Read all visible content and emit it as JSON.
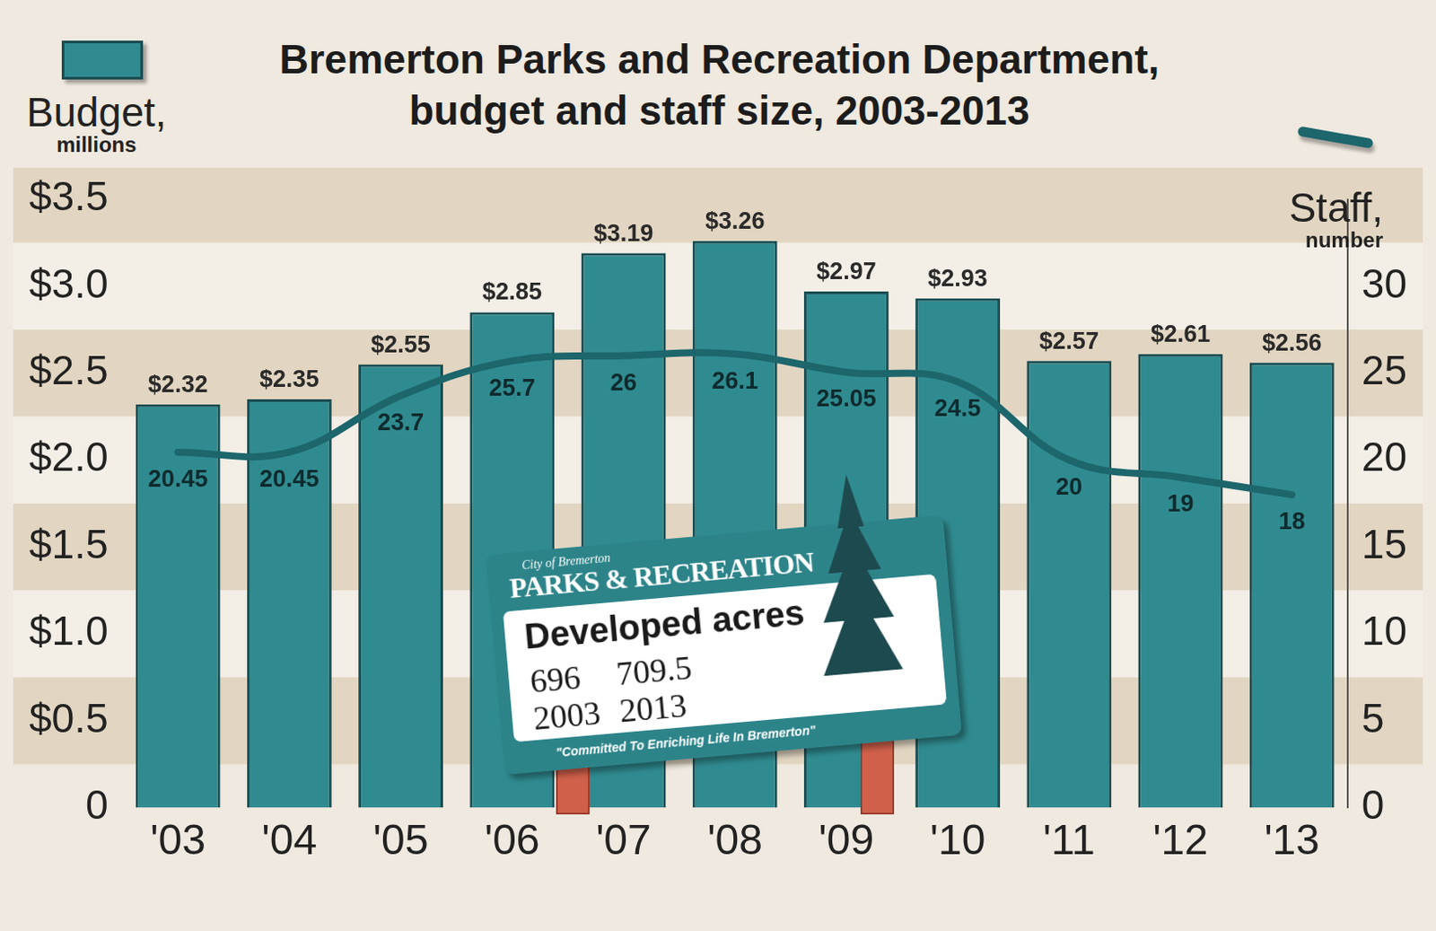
{
  "chart_data": {
    "type": "bar",
    "title": "Bremerton Parks and Recreation Department, budget and staff size, 2003-2013",
    "categories": [
      "'03",
      "'04",
      "'05",
      "'06",
      "'07",
      "'08",
      "'09",
      "'10",
      "'11",
      "'12",
      "'13"
    ],
    "series": [
      {
        "name": "Budget, millions",
        "type": "bar",
        "color": "#2f8b90",
        "values": [
          2.32,
          2.35,
          2.55,
          2.85,
          3.19,
          3.26,
          2.97,
          2.93,
          2.57,
          2.61,
          2.56
        ],
        "value_labels": [
          "$2.32",
          "$2.35",
          "$2.55",
          "$2.85",
          "$3.19",
          "$3.26",
          "$2.97",
          "$2.93",
          "$2.57",
          "$2.61",
          "$2.56"
        ]
      },
      {
        "name": "Staff, number",
        "type": "line",
        "color": "#1c666c",
        "axis": "y2",
        "values": [
          20.45,
          20.45,
          23.7,
          25.7,
          26,
          26.1,
          25.05,
          24.5,
          20,
          19,
          18
        ]
      }
    ],
    "ylim": [
      0,
      3.5
    ],
    "yticks": [
      0,
      {
        "value": 0.5,
        "label": "$0.5"
      },
      {
        "value": 1,
        "label": "$1.0"
      },
      {
        "value": 1.5,
        "label": "$1.5"
      },
      {
        "value": 2,
        "label": "$2.0"
      },
      {
        "value": 2.5,
        "label": "$2.5"
      },
      {
        "value": 3,
        "label": "$3.0"
      },
      {
        "value": 3.5,
        "label": "$3.5"
      }
    ],
    "y2lim": [
      0,
      35
    ],
    "y2ticks": [
      0,
      5,
      10,
      15,
      20,
      25,
      30
    ],
    "grid": true,
    "legend": "top",
    "data_labels": true,
    "annotations": {
      "org": "City of Bremerton",
      "heading": "PARKS & RECREATION",
      "title": "Developed acres",
      "columns": [
        {
          "value": 696,
          "year": "2003"
        },
        {
          "value": 709.5,
          "year": "2013"
        }
      ],
      "motto": "\"Committed To Enriching Life In Bremerton\""
    }
  }
}
